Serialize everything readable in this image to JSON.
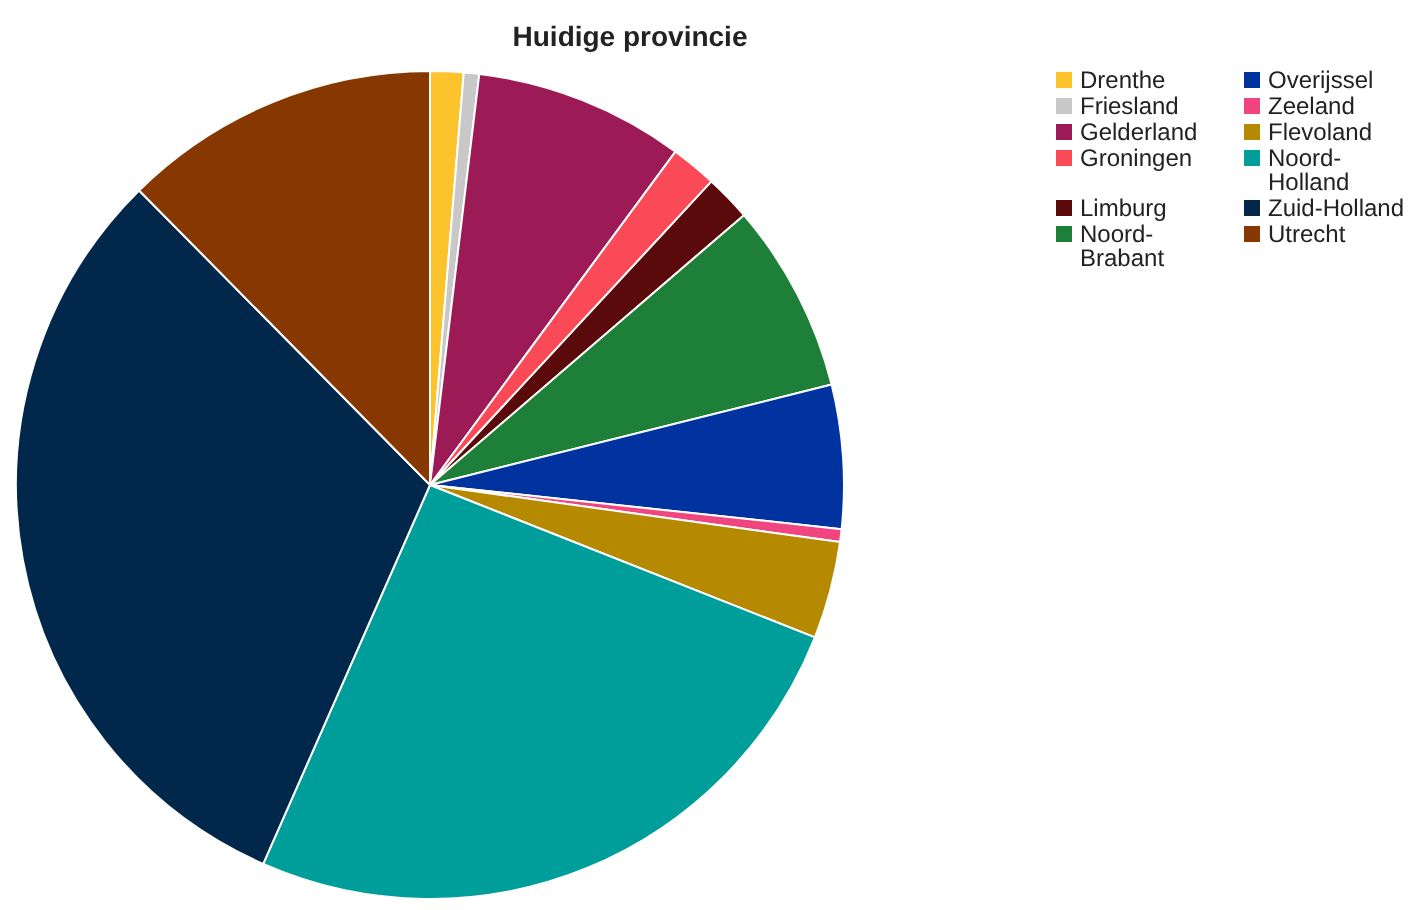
{
  "chart_data": {
    "type": "pie",
    "title": "Huidige provincie",
    "categories": [
      "Drenthe",
      "Friesland",
      "Gelderland",
      "Groningen",
      "Limburg",
      "Noord-Brabant",
      "Overijssel",
      "Zeeland",
      "Flevoland",
      "Noord-Holland",
      "Zuid-Holland",
      "Utrecht"
    ],
    "values": [
      1.3,
      0.6,
      8.2,
      1.8,
      1.8,
      7.4,
      5.6,
      0.5,
      3.8,
      25.6,
      31.0,
      12.4
    ],
    "colors": [
      "#fcc32c",
      "#c8c8c8",
      "#9c1a55",
      "#fb4a57",
      "#5a0a0a",
      "#1e8038",
      "#0033a0",
      "#f0457e",
      "#b58900",
      "#009e9a",
      "#01284a",
      "#873800"
    ],
    "legend": "top right"
  }
}
